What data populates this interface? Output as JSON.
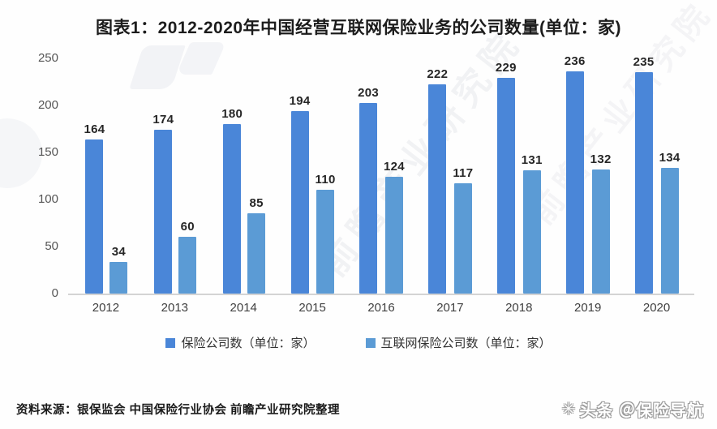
{
  "page": {
    "title": "图表1：2012-2020年中国经营互联网保险业务的公司数量(单位：家)",
    "source_note": "资料来源：银保监会 中国保险行业协会 前瞻产业研究院整理",
    "badge_text": "头条 ＠保险导航",
    "badge_icon_glyph": "✳",
    "watermark_text": "前瞻产业研究院",
    "watermark_text2": "前瞻产业研究院"
  },
  "colors": {
    "series1": "#4a86d8",
    "series2": "#5b9bd5",
    "axis_line": "#d4d4d4",
    "value_label_text": "#262626",
    "tick_text": "#555555"
  },
  "chart_data": {
    "type": "bar",
    "title": "图表1：2012-2020年中国经营互联网保险业务的公司数量(单位：家)",
    "categories": [
      "2012",
      "2013",
      "2014",
      "2015",
      "2016",
      "2017",
      "2018",
      "2019",
      "2020"
    ],
    "series": [
      {
        "name": "保险公司数（单位：家）",
        "color": "#4a86d8",
        "values": [
          164,
          174,
          180,
          194,
          203,
          222,
          229,
          236,
          235
        ]
      },
      {
        "name": "互联网保险公司数（单位：家）",
        "color": "#5b9bd5",
        "values": [
          34,
          60,
          85,
          110,
          124,
          117,
          131,
          132,
          134
        ]
      }
    ],
    "xlabel": "",
    "ylabel": "",
    "ylim": [
      0,
      250
    ],
    "yticks": [
      0,
      50,
      100,
      150,
      200,
      250
    ],
    "grid": false,
    "legend_position": "bottom",
    "data_labels": true
  }
}
